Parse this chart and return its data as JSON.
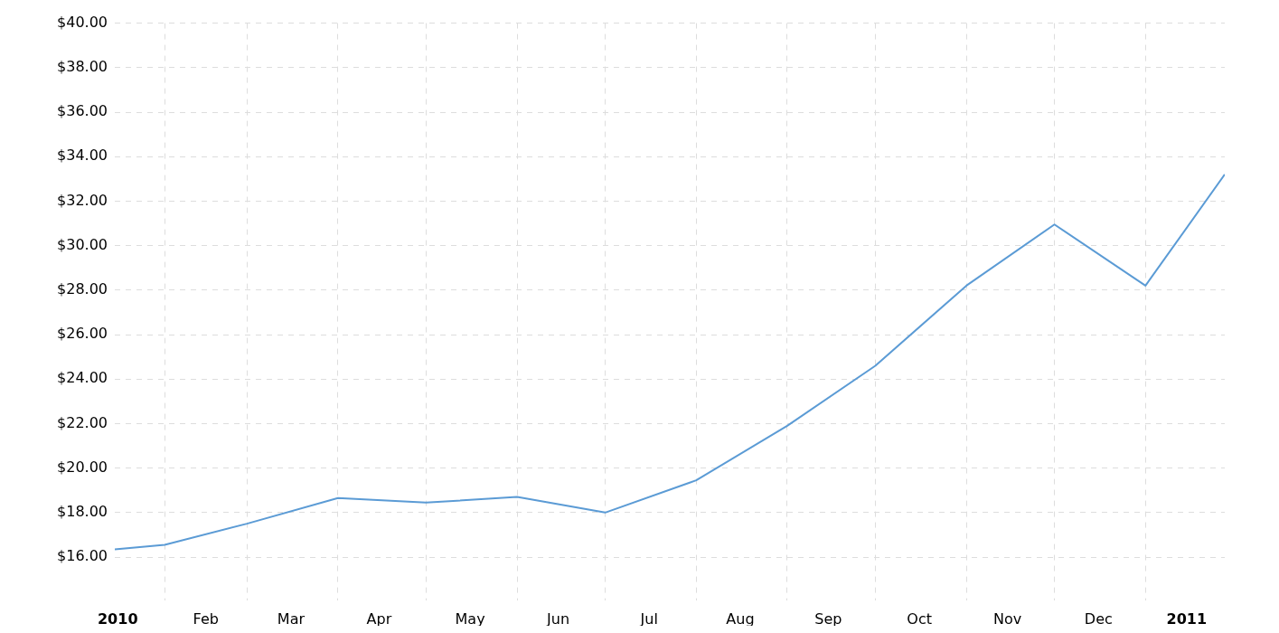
{
  "chart_data": {
    "type": "line",
    "x": [
      "2010-01-15",
      "2010-02-01",
      "2010-03-01",
      "2010-04-01",
      "2010-05-01",
      "2010-06-01",
      "2010-07-01",
      "2010-08-01",
      "2010-09-01",
      "2010-10-01",
      "2010-11-01",
      "2010-12-01",
      "2011-01-01",
      "2011-01-28"
    ],
    "series": [
      {
        "color": "#5b9bd5",
        "values": [
          16.35,
          16.55,
          17.5,
          18.65,
          18.45,
          18.7,
          18.0,
          19.45,
          21.9,
          24.6,
          28.2,
          30.95,
          28.2,
          33.2
        ]
      }
    ],
    "xlim": [
      "2010-01-15",
      "2011-01-28"
    ],
    "xticks": [
      {
        "value": "2010-01-16",
        "label": "2010"
      },
      {
        "value": "2010-02-01",
        "label": null
      },
      {
        "value": "2010-02-15",
        "label": "Feb"
      },
      {
        "value": "2010-03-01",
        "label": null
      },
      {
        "value": "2010-03-16",
        "label": "Mar"
      },
      {
        "value": "2010-04-01",
        "label": null
      },
      {
        "value": "2010-04-15",
        "label": "Apr"
      },
      {
        "value": "2010-05-01",
        "label": null
      },
      {
        "value": "2010-05-16",
        "label": "May"
      },
      {
        "value": "2010-06-01",
        "label": null
      },
      {
        "value": "2010-06-15",
        "label": "Jun"
      },
      {
        "value": "2010-07-01",
        "label": null
      },
      {
        "value": "2010-07-16",
        "label": "Jul"
      },
      {
        "value": "2010-08-01",
        "label": null
      },
      {
        "value": "2010-08-16",
        "label": "Aug"
      },
      {
        "value": "2010-09-01",
        "label": null
      },
      {
        "value": "2010-09-15",
        "label": "Sep"
      },
      {
        "value": "2010-10-01",
        "label": null
      },
      {
        "value": "2010-10-16",
        "label": "Oct"
      },
      {
        "value": "2010-11-01",
        "label": null
      },
      {
        "value": "2010-11-15",
        "label": "Nov"
      },
      {
        "value": "2010-12-01",
        "label": null
      },
      {
        "value": "2010-12-16",
        "label": "Dec"
      },
      {
        "value": "2011-01-01",
        "label": null
      },
      {
        "value": "2011-01-15",
        "label": "2011"
      }
    ],
    "ylim": [
      14.05,
      40
    ],
    "yticks": [
      {
        "value": 16,
        "label": "$16.00"
      },
      {
        "value": 18,
        "label": "$18.00"
      },
      {
        "value": 20,
        "label": "$20.00"
      },
      {
        "value": 22,
        "label": "$22.00"
      },
      {
        "value": 24,
        "label": "$24.00"
      },
      {
        "value": 26,
        "label": "$26.00"
      },
      {
        "value": 28,
        "label": "$28.00"
      },
      {
        "value": 30,
        "label": "$30.00"
      },
      {
        "value": 32,
        "label": "$32.00"
      },
      {
        "value": 34,
        "label": "$34.00"
      },
      {
        "value": 36,
        "label": "$36.00"
      },
      {
        "value": 38,
        "label": "$38.00"
      },
      {
        "value": 40,
        "label": "$40.00"
      }
    ],
    "grid": true,
    "legend": false,
    "marker": "none",
    "line_style": "solid"
  }
}
